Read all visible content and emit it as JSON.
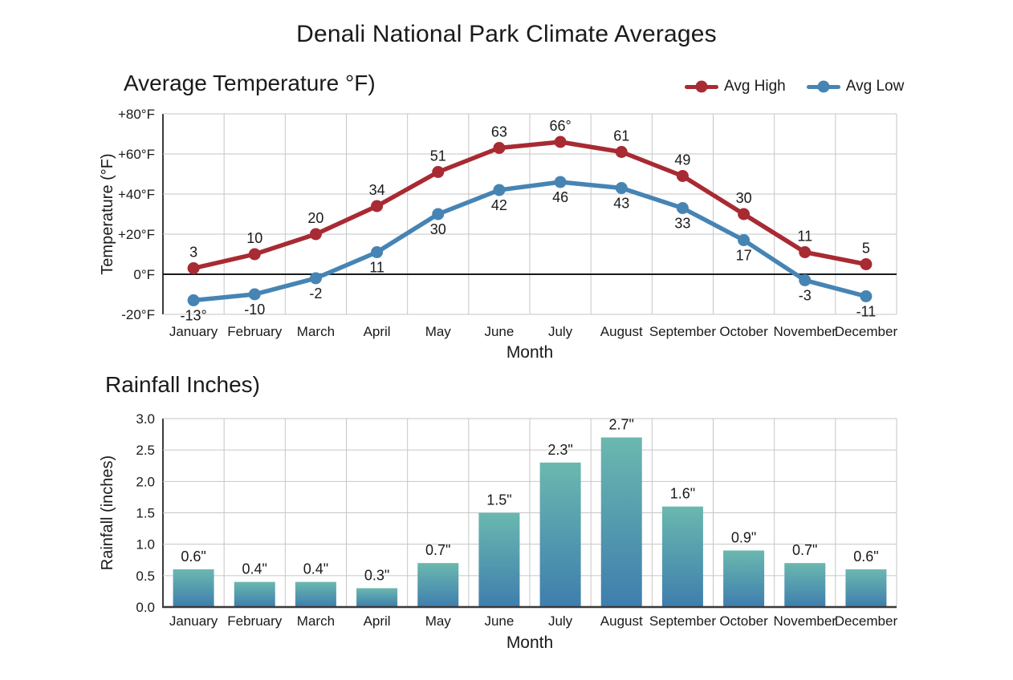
{
  "page": {
    "title": "Denali National Park Climate Averages"
  },
  "colors": {
    "text": "#1a1a1a",
    "grid": "#c6c6c6",
    "axis": "#3a3a3a",
    "zero_line": "#1a1a1a",
    "avg_high": "#a82a33",
    "avg_low": "#4684b4",
    "bar_top": "#6bb8af",
    "bar_bottom": "#3e7eae"
  },
  "chart_data": [
    {
      "type": "line",
      "title": "Average Temperature °F)",
      "xlabel": "Month",
      "ylabel": "Temperature (°F)",
      "ylim": [
        -20,
        80
      ],
      "grid": true,
      "legend_position": "top-right",
      "zero_line": 0,
      "y_ticks": [
        {
          "value": 80,
          "label": "+80°F"
        },
        {
          "value": 60,
          "label": "+60°F"
        },
        {
          "value": 40,
          "label": "+40°F"
        },
        {
          "value": 20,
          "label": "+20°F"
        },
        {
          "value": 0,
          "label": "0°F"
        },
        {
          "value": -20,
          "label": "-20°F"
        }
      ],
      "categories": [
        "January",
        "February",
        "March",
        "April",
        "May",
        "June",
        "July",
        "August",
        "September",
        "October",
        "November",
        "December"
      ],
      "series": [
        {
          "name": "Avg High",
          "color": "#a82a33",
          "values": [
            3,
            10,
            20,
            34,
            51,
            63,
            66,
            61,
            49,
            30,
            11,
            5
          ],
          "point_labels": [
            "3",
            "10",
            "20",
            "34",
            "51",
            "63",
            "66°",
            "61",
            "49",
            "30",
            "11",
            "5"
          ],
          "label_position": "above"
        },
        {
          "name": "Avg Low",
          "color": "#4684b4",
          "values": [
            -13,
            -10,
            -2,
            11,
            30,
            42,
            46,
            43,
            33,
            17,
            -3,
            -11
          ],
          "point_labels": [
            "-13°",
            "-10",
            "-2",
            "11",
            "30",
            "42",
            "46",
            "43",
            "33",
            "17",
            "-3",
            "-11"
          ],
          "label_position": "below"
        }
      ]
    },
    {
      "type": "bar",
      "title": "Rainfall Inches)",
      "xlabel": "Month",
      "ylabel": "Rainfall (inches)",
      "ylim": [
        0,
        3
      ],
      "grid": true,
      "y_ticks": [
        {
          "value": 3.0,
          "label": "3.0"
        },
        {
          "value": 2.5,
          "label": "2.5"
        },
        {
          "value": 2.0,
          "label": "2.0"
        },
        {
          "value": 1.5,
          "label": "1.5"
        },
        {
          "value": 1.0,
          "label": "1.0"
        },
        {
          "value": 0.5,
          "label": "0.5"
        },
        {
          "value": 0.0,
          "label": "0.0"
        }
      ],
      "categories": [
        "January",
        "February",
        "March",
        "April",
        "May",
        "June",
        "July",
        "August",
        "September",
        "October",
        "November",
        "December"
      ],
      "values": [
        0.6,
        0.4,
        0.4,
        0.3,
        0.7,
        1.5,
        2.3,
        2.7,
        1.6,
        0.9,
        0.7,
        0.6
      ],
      "bar_labels": [
        "0.6\"",
        "0.4\"",
        "0.4\"",
        "0.3\"",
        "0.7\"",
        "1.5\"",
        "2.3\"",
        "2.7\"",
        "1.6\"",
        "0.9\"",
        "0.7\"",
        "0.6\""
      ],
      "bar_gradient": {
        "top": "#6bb8af",
        "bottom": "#3e7eae"
      }
    }
  ]
}
